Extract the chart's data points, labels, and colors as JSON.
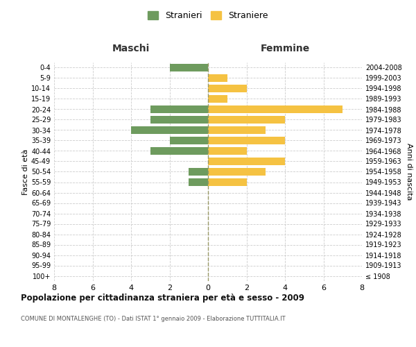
{
  "age_groups": [
    "100+",
    "95-99",
    "90-94",
    "85-89",
    "80-84",
    "75-79",
    "70-74",
    "65-69",
    "60-64",
    "55-59",
    "50-54",
    "45-49",
    "40-44",
    "35-39",
    "30-34",
    "25-29",
    "20-24",
    "15-19",
    "10-14",
    "5-9",
    "0-4"
  ],
  "birth_years": [
    "≤ 1908",
    "1909-1913",
    "1914-1918",
    "1919-1923",
    "1924-1928",
    "1929-1933",
    "1934-1938",
    "1939-1943",
    "1944-1948",
    "1949-1953",
    "1954-1958",
    "1959-1963",
    "1964-1968",
    "1969-1973",
    "1974-1978",
    "1979-1983",
    "1984-1988",
    "1989-1993",
    "1994-1998",
    "1999-2003",
    "2004-2008"
  ],
  "males": [
    0,
    0,
    0,
    0,
    0,
    0,
    0,
    0,
    0,
    1,
    1,
    0,
    3,
    2,
    4,
    3,
    3,
    0,
    0,
    0,
    2
  ],
  "females": [
    0,
    0,
    0,
    0,
    0,
    0,
    0,
    0,
    0,
    2,
    3,
    4,
    2,
    4,
    3,
    4,
    7,
    1,
    2,
    1,
    0
  ],
  "male_color": "#6e9b5e",
  "female_color": "#f5c242",
  "title": "Popolazione per cittadinanza straniera per età e sesso - 2009",
  "subtitle": "COMUNE DI MONTALENGHE (TO) - Dati ISTAT 1° gennaio 2009 - Elaborazione TUTTITALIA.IT",
  "left_label": "Maschi",
  "right_label": "Femmine",
  "left_axis_label": "Fasce di età",
  "right_axis_label": "Anni di nascita",
  "legend_male": "Stranieri",
  "legend_female": "Straniere",
  "xlim": 8,
  "background_color": "#ffffff",
  "grid_color": "#cccccc",
  "bar_height": 0.75
}
